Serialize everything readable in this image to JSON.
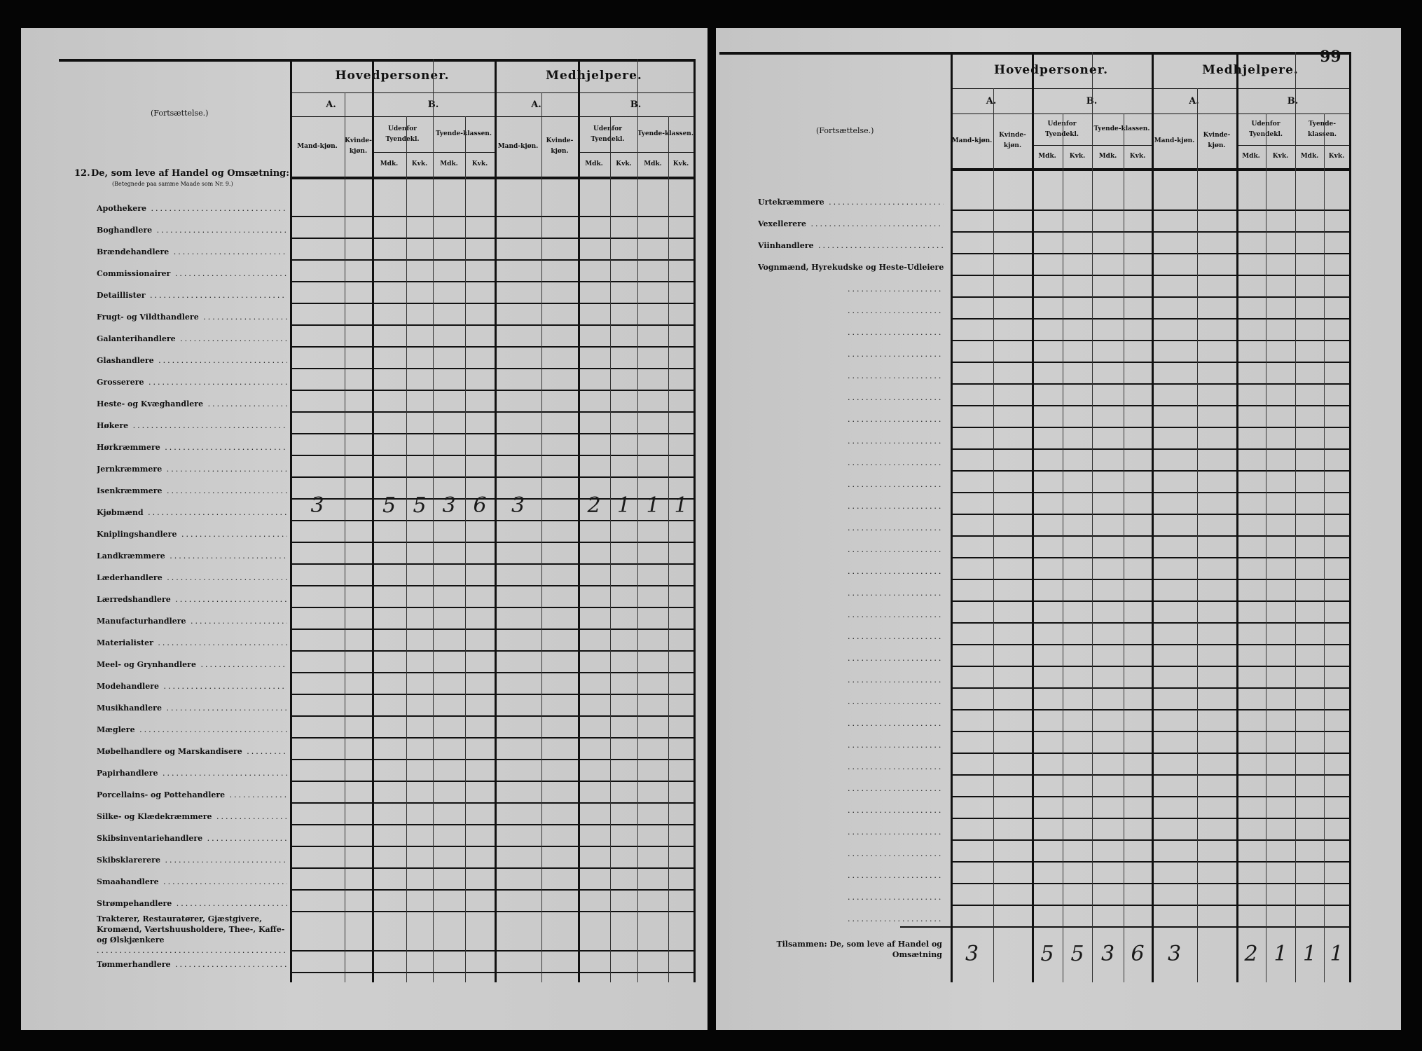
{
  "left_page": {
    "continuation": "(Fortsættelse.)",
    "section_number": "12.",
    "section_title": "De, som leve af Handel og Omsætning:",
    "section_note": "(Betegnede paa samme Maade som Nr. 9.)",
    "header": {
      "group1": "Hovedpersoner.",
      "group2": "Medhjelpere.",
      "a": "A.",
      "b": "B.",
      "mand": "Mand-kjøn.",
      "kvinde": "Kvinde-kjøn.",
      "udenfor": "Udenfor Tyendekl.",
      "tyende": "Tyende-klassen.",
      "mdk": "Mdk.",
      "kvk": "Kvk."
    },
    "rows": [
      {
        "label": "Apothekere",
        "values": []
      },
      {
        "label": "Boghandlere",
        "values": []
      },
      {
        "label": "Brændehandlere",
        "values": []
      },
      {
        "label": "Commissionairer",
        "values": []
      },
      {
        "label": "Detaillister",
        "values": []
      },
      {
        "label": "Frugt- og Vildthandlere",
        "values": []
      },
      {
        "label": "Galanterihandlere",
        "values": []
      },
      {
        "label": "Glashandlere",
        "values": []
      },
      {
        "label": "Grosserere",
        "values": []
      },
      {
        "label": "Heste- og Kvæghandlere",
        "values": []
      },
      {
        "label": "Høkere",
        "values": []
      },
      {
        "label": "Hørkræmmere",
        "values": []
      },
      {
        "label": "Jernkræmmere",
        "values": []
      },
      {
        "label": "Isenkræmmere",
        "values": []
      },
      {
        "label": "Kjøbmænd",
        "values": [
          "3",
          "",
          "5",
          "5",
          "3",
          "6",
          "3",
          "",
          "2",
          "1",
          "1",
          "1"
        ]
      },
      {
        "label": "Kniplingshandlere",
        "values": []
      },
      {
        "label": "Landkræmmere",
        "values": []
      },
      {
        "label": "Læderhandlere",
        "values": []
      },
      {
        "label": "Lærredshandlere",
        "values": []
      },
      {
        "label": "Manufacturhandlere",
        "values": []
      },
      {
        "label": "Materialister",
        "values": []
      },
      {
        "label": "Meel- og Grynhandlere",
        "values": []
      },
      {
        "label": "Modehandlere",
        "values": []
      },
      {
        "label": "Musikhandlere",
        "values": []
      },
      {
        "label": "Mæglere",
        "values": []
      },
      {
        "label": "Møbelhandlere og Marskandisere",
        "values": []
      },
      {
        "label": "Papirhandlere",
        "values": []
      },
      {
        "label": "Porcellains- og Pottehandlere",
        "values": []
      },
      {
        "label": "Silke- og Klædekræmmere",
        "values": []
      },
      {
        "label": "Skibsinventariehandlere",
        "values": []
      },
      {
        "label": "Skibsklarerere",
        "values": []
      },
      {
        "label": "Smaahandlere",
        "values": []
      },
      {
        "label": "Strømpehandlere",
        "values": []
      },
      {
        "label": "Trakterer, Restauratører, Gjæstgivere, Kromænd, Værtshuusholdere, Thee-, Kaffe- og Ølskjænkere",
        "values": [],
        "tall": true
      },
      {
        "label": "Tømmerhandlere",
        "values": []
      }
    ]
  },
  "right_page": {
    "page_number": "99",
    "continuation": "(Fortsættelse.)",
    "rows": [
      {
        "label": "Urtekræmmere",
        "values": []
      },
      {
        "label": "Vexellerere",
        "values": []
      },
      {
        "label": "Viinhandlere",
        "values": []
      },
      {
        "label": "Vognmænd, Hyrekudske og Heste-Udleiere",
        "values": []
      }
    ],
    "total": {
      "label": "Tilsammen: De, som leve af Handel og Omsætning",
      "values": [
        "3",
        "",
        "5",
        "5",
        "3",
        "6",
        "3",
        "",
        "2",
        "1",
        "1",
        "1"
      ]
    }
  }
}
